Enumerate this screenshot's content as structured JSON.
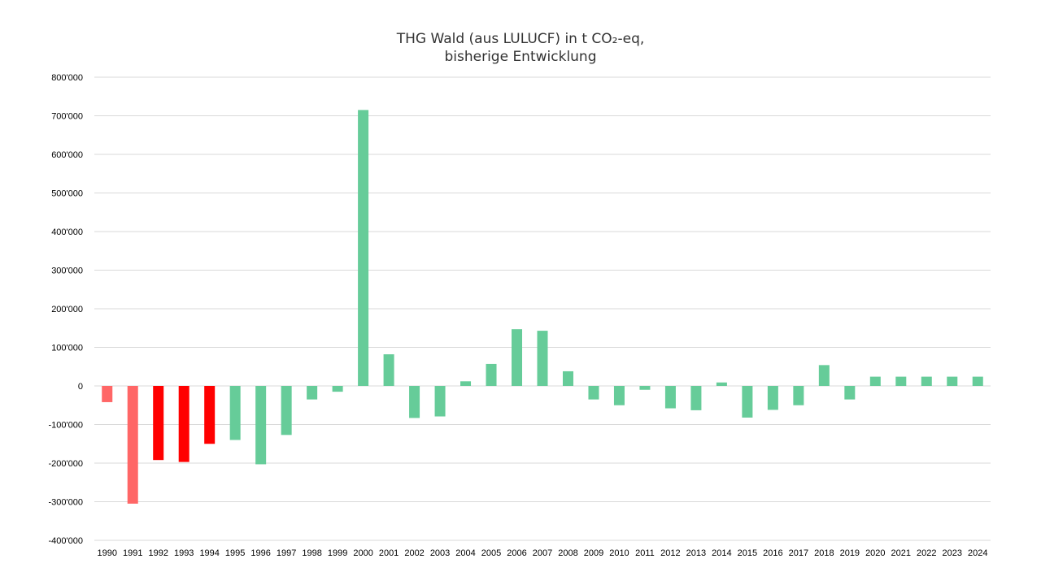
{
  "chart_data": {
    "type": "bar",
    "title": "THG Wald (aus LULUCF) in t CO₂-eq,",
    "subtitle": "bisherige Entwicklung",
    "xlabel": "",
    "ylabel": "",
    "ylim": [
      -400000,
      800000
    ],
    "ytick_values": [
      800000,
      700000,
      600000,
      500000,
      400000,
      300000,
      200000,
      100000,
      0,
      -100000,
      -200000,
      -300000,
      -400000
    ],
    "ytick_labels": [
      "800'000",
      "700'000",
      "600'000",
      "500'000",
      "400'000",
      "300'000",
      "200'000",
      "100'000",
      "0",
      "-100'000",
      "-200'000",
      "-300'000",
      "-400'000"
    ],
    "grid": true,
    "legend": "none",
    "categories": [
      "1990",
      "1991",
      "1992",
      "1993",
      "1994",
      "1995",
      "1996",
      "1997",
      "1998",
      "1999",
      "2000",
      "2001",
      "2002",
      "2003",
      "2004",
      "2005",
      "2006",
      "2007",
      "2008",
      "2009",
      "2010",
      "2011",
      "2012",
      "2013",
      "2014",
      "2015",
      "2016",
      "2017",
      "2018",
      "2019",
      "2020",
      "2021",
      "2022",
      "2023",
      "2024"
    ],
    "values": [
      -42000,
      -305000,
      -192000,
      -197000,
      -150000,
      -140000,
      -203000,
      -127000,
      -35000,
      -15000,
      715000,
      82000,
      -83000,
      -79000,
      12000,
      57000,
      147000,
      143000,
      38000,
      -35000,
      -50000,
      -10000,
      -58000,
      -63000,
      9000,
      -82000,
      -62000,
      -50000,
      54000,
      -35000,
      24000,
      24000,
      24000,
      24000,
      24000
    ],
    "bar_colors": [
      "#ff6666",
      "#ff6666",
      "#ff0000",
      "#ff0000",
      "#ff0000",
      "#66cc99",
      "#66cc99",
      "#66cc99",
      "#66cc99",
      "#66cc99",
      "#66cc99",
      "#66cc99",
      "#66cc99",
      "#66cc99",
      "#66cc99",
      "#66cc99",
      "#66cc99",
      "#66cc99",
      "#66cc99",
      "#66cc99",
      "#66cc99",
      "#66cc99",
      "#66cc99",
      "#66cc99",
      "#66cc99",
      "#66cc99",
      "#66cc99",
      "#66cc99",
      "#66cc99",
      "#66cc99",
      "#66cc99",
      "#66cc99",
      "#66cc99",
      "#66cc99",
      "#66cc99"
    ],
    "colors": {
      "light_red": "#ff6666",
      "red": "#ff0000",
      "green": "#66cc99",
      "grid": "#d9d9d9"
    }
  }
}
